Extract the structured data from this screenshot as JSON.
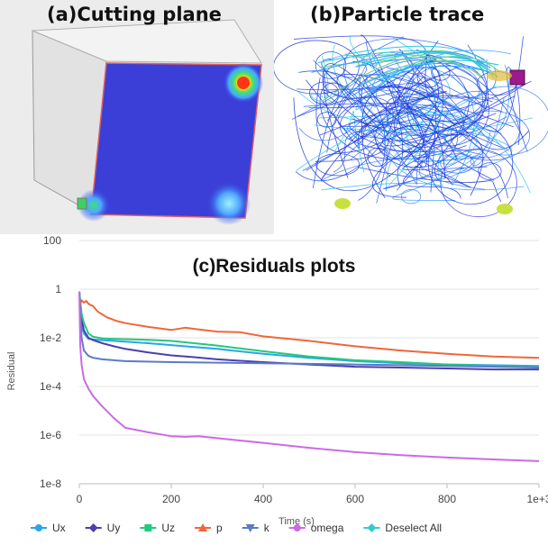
{
  "panel_a": {
    "title": "(a)Cutting plane"
  },
  "panel_b": {
    "title": "(b)Particle trace"
  },
  "chart_data": {
    "type": "line",
    "title": "(c)Residuals plots",
    "xlabel": "Time (s)",
    "ylabel": "Residual",
    "x_ticks": [
      "0",
      "200",
      "400",
      "600",
      "800",
      "1e+3"
    ],
    "y_ticks": [
      "100",
      "1",
      "1e-2",
      "1e-4",
      "1e-6",
      "1e-8"
    ],
    "xlim": [
      0,
      1000
    ],
    "ylim": [
      1e-08,
      100
    ],
    "y_scale": "log",
    "grid": true,
    "legend_position": "bottom",
    "series": [
      {
        "name": "Ux",
        "color": "#29a6e6",
        "marker": "circle",
        "x": [
          0,
          5,
          10,
          20,
          30,
          50,
          75,
          100,
          150,
          200,
          250,
          300,
          400,
          500,
          600,
          700,
          800,
          900,
          1000
        ],
        "y": [
          0.8,
          0.03,
          0.015,
          0.009,
          0.0085,
          0.008,
          0.0075,
          0.007,
          0.006,
          0.005,
          0.0042,
          0.0035,
          0.0022,
          0.0015,
          0.0011,
          0.0009,
          0.0008,
          0.00075,
          0.0007
        ]
      },
      {
        "name": "Uy",
        "color": "#4b3fb0",
        "marker": "diamond",
        "x": [
          0,
          5,
          10,
          20,
          30,
          50,
          75,
          100,
          150,
          200,
          250,
          300,
          400,
          500,
          600,
          700,
          800,
          900,
          1000
        ],
        "y": [
          0.8,
          0.06,
          0.02,
          0.01,
          0.008,
          0.006,
          0.0045,
          0.0035,
          0.0025,
          0.0019,
          0.0016,
          0.0013,
          0.001,
          0.0008,
          0.00065,
          0.0006,
          0.00055,
          0.0005,
          0.0005
        ]
      },
      {
        "name": "Uz",
        "color": "#22c97c",
        "marker": "square",
        "x": [
          0,
          5,
          10,
          20,
          30,
          50,
          75,
          100,
          150,
          200,
          250,
          300,
          400,
          500,
          600,
          700,
          800,
          900,
          1000
        ],
        "y": [
          0.8,
          0.1,
          0.04,
          0.015,
          0.011,
          0.0095,
          0.009,
          0.0088,
          0.0082,
          0.0075,
          0.006,
          0.0048,
          0.0028,
          0.0017,
          0.0012,
          0.001,
          0.0008,
          0.0007,
          0.0006
        ]
      },
      {
        "name": "p",
        "color": "#f0663a",
        "marker": "triangle",
        "x": [
          0,
          5,
          10,
          15,
          20,
          30,
          40,
          60,
          80,
          100,
          150,
          200,
          230,
          260,
          300,
          350,
          400,
          500,
          600,
          700,
          800,
          900,
          1000
        ],
        "y": [
          0.2,
          0.35,
          0.28,
          0.33,
          0.25,
          0.2,
          0.12,
          0.07,
          0.05,
          0.04,
          0.028,
          0.021,
          0.026,
          0.022,
          0.018,
          0.017,
          0.0115,
          0.0075,
          0.0045,
          0.003,
          0.0022,
          0.0017,
          0.0015
        ]
      },
      {
        "name": "k",
        "color": "#5b7bc4",
        "marker": "triangle-down",
        "x": [
          0,
          5,
          10,
          20,
          30,
          50,
          100,
          200,
          300,
          400,
          500,
          600,
          700,
          800,
          900,
          1000
        ],
        "y": [
          0.8,
          0.01,
          0.003,
          0.0018,
          0.0015,
          0.0013,
          0.0011,
          0.001,
          0.00095,
          0.0009,
          0.00085,
          0.0008,
          0.00075,
          0.0007,
          0.00065,
          0.0006
        ]
      },
      {
        "name": "omega",
        "color": "#cb6ae5",
        "marker": "circle",
        "x": [
          0,
          2,
          5,
          10,
          20,
          30,
          50,
          75,
          100,
          150,
          200,
          230,
          260,
          300,
          400,
          500,
          600,
          700,
          800,
          900,
          1000
        ],
        "y": [
          0.8,
          0.005,
          0.0008,
          0.0002,
          8e-05,
          4e-05,
          1.5e-05,
          5e-06,
          2e-06,
          1.3e-06,
          9e-07,
          8.5e-07,
          9e-07,
          7.5e-07,
          4.8e-07,
          3e-07,
          2e-07,
          1.5e-07,
          1.2e-07,
          1e-07,
          8.5e-08
        ]
      }
    ],
    "legend_extra": {
      "name": "Deselect All",
      "color": "#36c8d4",
      "marker": "diamond"
    }
  }
}
